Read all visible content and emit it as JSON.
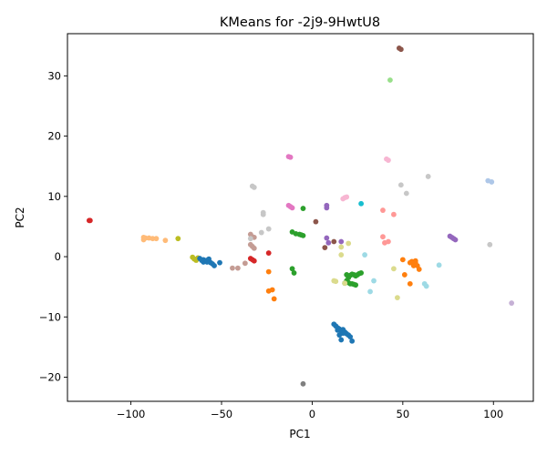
{
  "chart_data": {
    "type": "scatter",
    "title": "KMeans for -2j9-9HwtU8",
    "xlabel": "PC1",
    "ylabel": "PC2",
    "xlim": [
      -135,
      122
    ],
    "ylim": [
      -24,
      37
    ],
    "xticks": [
      -100,
      -50,
      0,
      50,
      100
    ],
    "yticks": [
      -20,
      -10,
      0,
      10,
      20,
      30
    ],
    "grid": false,
    "legend": "none",
    "series": [
      {
        "color": "#d62728",
        "points": [
          [
            -123,
            6
          ],
          [
            -122.5,
            6
          ],
          [
            -24,
            0.6
          ],
          [
            -34,
            -0.3
          ],
          [
            -33,
            -0.5
          ],
          [
            -32,
            -0.7
          ]
        ]
      },
      {
        "color": "#ffbb78",
        "points": [
          [
            -93,
            3.2
          ],
          [
            -92,
            3.1
          ],
          [
            -90,
            3.1
          ],
          [
            -88,
            3.0
          ],
          [
            -86,
            3.0
          ],
          [
            -81,
            2.7
          ],
          [
            -93,
            2.8
          ]
        ]
      },
      {
        "color": "#bcbd22",
        "points": [
          [
            -74,
            3.0
          ],
          [
            -66,
            -0.1
          ],
          [
            -65,
            -0.4
          ],
          [
            -64,
            -0.6
          ],
          [
            -63,
            -0.2
          ]
        ]
      },
      {
        "color": "#1f77b4",
        "points": [
          [
            -62,
            -0.3
          ],
          [
            -60,
            -0.5
          ],
          [
            -59,
            -0.7
          ],
          [
            -58,
            -0.6
          ],
          [
            -57,
            -0.4
          ],
          [
            -56,
            -1.0
          ],
          [
            -55,
            -1.2
          ],
          [
            -54,
            -1.5
          ],
          [
            -51,
            -1.0
          ],
          [
            -60,
            -0.9
          ],
          [
            -58,
            -0.9
          ],
          [
            -61,
            -0.6
          ],
          [
            12,
            -11.2
          ],
          [
            13,
            -11.5
          ],
          [
            14,
            -11.8
          ],
          [
            15,
            -12.0
          ],
          [
            16,
            -12.3
          ],
          [
            17,
            -12.1
          ],
          [
            18,
            -12.5
          ],
          [
            19,
            -12.8
          ],
          [
            20,
            -13.0
          ],
          [
            21,
            -13.3
          ],
          [
            22,
            -14.0
          ],
          [
            15,
            -13.0
          ],
          [
            16,
            -13.8
          ],
          [
            17,
            -12.7
          ],
          [
            14,
            -12.2
          ]
        ]
      },
      {
        "color": "#c49c94",
        "points": [
          [
            -44,
            -1.9
          ],
          [
            -41,
            -1.9
          ],
          [
            -37,
            -1.1
          ],
          [
            -34,
            3.7
          ],
          [
            -33,
            3.3
          ],
          [
            -32,
            3.2
          ],
          [
            -34,
            2.0
          ],
          [
            -33,
            1.7
          ],
          [
            -32,
            1.4
          ]
        ]
      },
      {
        "color": "#c7c7c7",
        "points": [
          [
            -34,
            3.0
          ],
          [
            -28,
            4.0
          ],
          [
            -24,
            4.6
          ],
          [
            -27,
            7.0
          ],
          [
            -27,
            7.3
          ],
          [
            -33,
            11.7
          ],
          [
            -32,
            11.5
          ],
          [
            49,
            11.9
          ],
          [
            52,
            10.5
          ],
          [
            64,
            13.3
          ],
          [
            98,
            2.0
          ]
        ]
      },
      {
        "color": "#ff7f0e",
        "points": [
          [
            -24,
            -2.5
          ],
          [
            -24,
            -5.7
          ],
          [
            -22,
            -5.5
          ],
          [
            -21,
            -7.0
          ],
          [
            50,
            -0.5
          ],
          [
            51,
            -3.0
          ],
          [
            54,
            -4.5
          ],
          [
            54,
            -1.0
          ],
          [
            55,
            -0.8
          ],
          [
            56,
            -1.2
          ],
          [
            57,
            -0.7
          ],
          [
            58,
            -1.5
          ],
          [
            59,
            -2.1
          ],
          [
            56,
            -1.5
          ],
          [
            57,
            -1.0
          ]
        ]
      },
      {
        "color": "#2ca02c",
        "points": [
          [
            -11,
            4.1
          ],
          [
            -9,
            3.8
          ],
          [
            -7,
            3.7
          ],
          [
            -6,
            3.6
          ],
          [
            -5,
            3.5
          ],
          [
            -5,
            8.0
          ],
          [
            -11,
            -2.0
          ],
          [
            -10,
            -2.7
          ],
          [
            19,
            -3.0
          ],
          [
            20,
            -3.5
          ],
          [
            21,
            -3.1
          ],
          [
            22,
            -2.9
          ],
          [
            23,
            -3.0
          ],
          [
            24,
            -3.2
          ],
          [
            25,
            -3.0
          ],
          [
            26,
            -2.8
          ],
          [
            27,
            -2.7
          ],
          [
            19,
            -4.0
          ],
          [
            20,
            -4.3
          ],
          [
            21,
            -4.5
          ],
          [
            22,
            -4.5
          ],
          [
            23,
            -4.6
          ],
          [
            24,
            -4.7
          ],
          [
            18,
            -4.4
          ]
        ]
      },
      {
        "color": "#e377c2",
        "points": [
          [
            -13,
            16.6
          ],
          [
            -12,
            16.5
          ],
          [
            -13,
            8.5
          ],
          [
            -12,
            8.3
          ],
          [
            -11,
            8.1
          ]
        ]
      },
      {
        "color": "#8c564b",
        "points": [
          [
            2,
            5.8
          ],
          [
            7,
            1.5
          ],
          [
            12,
            2.5
          ],
          [
            48,
            34.6
          ],
          [
            49,
            34.4
          ]
        ]
      },
      {
        "color": "#9467bd",
        "points": [
          [
            8,
            8.1
          ],
          [
            8,
            8.5
          ],
          [
            8,
            3.1
          ],
          [
            9,
            2.3
          ],
          [
            16,
            2.5
          ],
          [
            76,
            3.4
          ],
          [
            77,
            3.2
          ],
          [
            78,
            3.0
          ],
          [
            79,
            2.8
          ]
        ]
      },
      {
        "color": "#dbdb8d",
        "points": [
          [
            12,
            -4.0
          ],
          [
            13,
            -4.1
          ],
          [
            16,
            0.3
          ],
          [
            16,
            1.6
          ],
          [
            20,
            2.2
          ],
          [
            18,
            -4.4
          ],
          [
            45,
            -2.0
          ],
          [
            47,
            -6.8
          ]
        ]
      },
      {
        "color": "#f7b6d2",
        "points": [
          [
            17,
            9.6
          ],
          [
            18,
            9.8
          ],
          [
            19,
            9.9
          ],
          [
            41,
            16.2
          ],
          [
            42,
            16.0
          ]
        ]
      },
      {
        "color": "#17becf",
        "points": [
          [
            27,
            8.8
          ]
        ]
      },
      {
        "color": "#9edae5",
        "points": [
          [
            29,
            0.3
          ],
          [
            32,
            -5.8
          ],
          [
            34,
            -4.0
          ],
          [
            62,
            -4.5
          ],
          [
            63,
            -4.9
          ],
          [
            70,
            -1.4
          ]
        ]
      },
      {
        "color": "#ff9896",
        "points": [
          [
            39,
            7.7
          ],
          [
            39,
            3.3
          ],
          [
            40,
            2.3
          ],
          [
            42,
            2.5
          ],
          [
            45,
            7.0
          ]
        ]
      },
      {
        "color": "#98df8a",
        "points": [
          [
            43,
            29.3
          ]
        ]
      },
      {
        "color": "#aec7e8",
        "points": [
          [
            97,
            12.6
          ],
          [
            99,
            12.4
          ]
        ]
      },
      {
        "color": "#c5b0d5",
        "points": [
          [
            110,
            -7.7
          ]
        ]
      },
      {
        "color": "#7f7f7f",
        "points": [
          [
            -5,
            -21.1
          ]
        ]
      }
    ]
  }
}
